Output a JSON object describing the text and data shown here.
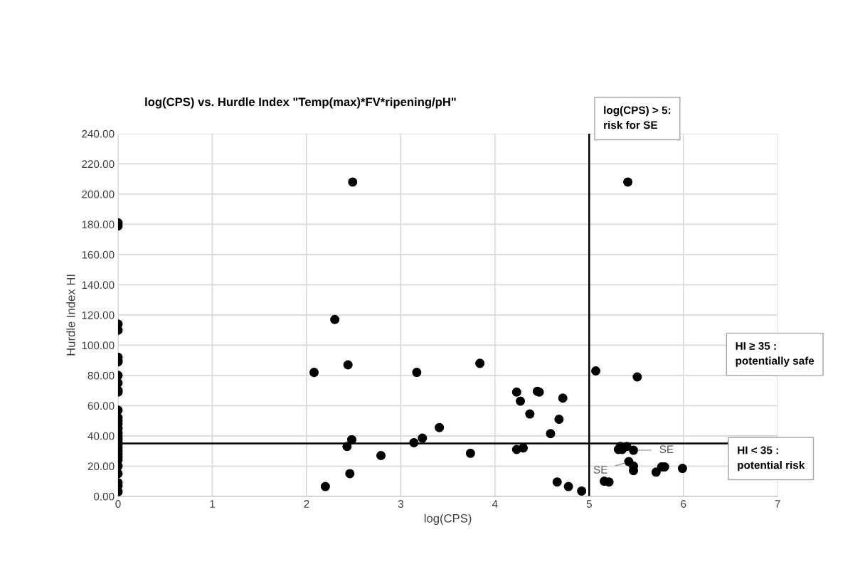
{
  "chart_data": {
    "type": "scatter",
    "title": "log(CPS) vs. Hurdle Index \"Temp(max)*FV*ripening/pH\"",
    "xlabel": "log(CPS)",
    "ylabel": "Hurdle Index HI",
    "x": [
      0,
      0,
      0,
      0,
      0,
      0,
      0,
      0,
      0,
      0,
      0,
      0,
      0,
      0,
      0,
      0,
      0,
      0,
      0,
      0,
      0,
      0,
      0,
      0,
      0,
      0,
      0,
      0,
      0,
      0,
      0,
      2.49,
      2.3,
      2.08,
      2.44,
      3.17,
      3.84,
      5.07,
      5.51,
      5.41,
      4.23,
      4.27,
      4.45,
      4.47,
      4.72,
      4.37,
      4.68,
      4.59,
      3.41,
      3.23,
      3.14,
      2.48,
      2.43,
      2.79,
      3.74,
      4.23,
      4.3,
      2.2,
      2.46,
      4.66,
      4.78,
      4.92,
      5.33,
      5.4,
      5.31,
      5.35,
      5.47,
      5.42,
      5.47,
      5.47,
      5.71,
      5.77,
      5.8,
      5.99,
      5.16,
      5.21
    ],
    "series": [
      {
        "color": "#000000",
        "values": [
          181,
          179,
          114,
          110,
          92,
          90,
          89,
          80,
          75,
          70,
          69,
          57,
          52,
          50,
          48,
          45,
          42,
          40,
          38,
          36,
          34,
          32,
          30,
          28,
          26,
          24,
          20,
          15,
          9,
          7,
          3,
          208,
          117,
          82,
          87,
          82,
          88,
          83,
          79,
          208,
          69,
          63,
          69.5,
          69,
          65,
          54.5,
          51,
          41.5,
          45.5,
          38.5,
          35.5,
          37.5,
          33,
          27,
          28.5,
          31,
          32,
          6.5,
          15,
          9.5,
          6.5,
          3.5,
          33,
          33,
          31,
          31,
          30.5,
          23,
          20,
          17,
          16,
          19.5,
          19.5,
          18.5,
          10,
          9.5
        ]
      }
    ],
    "xlim": [
      0,
      7
    ],
    "xticks": [
      0,
      1,
      2,
      3,
      4,
      5,
      6,
      7
    ],
    "ylim": [
      0,
      240
    ],
    "yticks": [
      {
        "value": 0,
        "label": "0.00"
      },
      {
        "value": 20,
        "label": "20.00"
      },
      {
        "value": 40,
        "label": "40.00"
      },
      {
        "value": 60,
        "label": "60.00"
      },
      {
        "value": 80,
        "label": "80.00"
      },
      {
        "value": 100,
        "label": "100.00"
      },
      {
        "value": 120,
        "label": "120.00"
      },
      {
        "value": 140,
        "label": "140.00"
      },
      {
        "value": 160,
        "label": "160.00"
      },
      {
        "value": 180,
        "label": "180.00"
      },
      {
        "value": 200,
        "label": "200.00"
      },
      {
        "value": 220,
        "label": "220.00"
      },
      {
        "value": 240,
        "label": "240.00"
      }
    ],
    "ref_lines": [
      {
        "axis": "x",
        "value": 5,
        "color": "#000000"
      },
      {
        "axis": "y",
        "value": 35,
        "color": "#000000"
      }
    ],
    "annotations": [
      "log(CPS) > 5:\nrisk for SE",
      "HI ≥ 35 :\npotentially safe",
      "HI < 35 :\npotential risk",
      {
        "text": "SE",
        "x": 5.47,
        "y": 30.5
      },
      {
        "text": "SE",
        "x": 5.42,
        "y": 23
      }
    ],
    "grid": true,
    "marker": "circle",
    "legend": false
  }
}
